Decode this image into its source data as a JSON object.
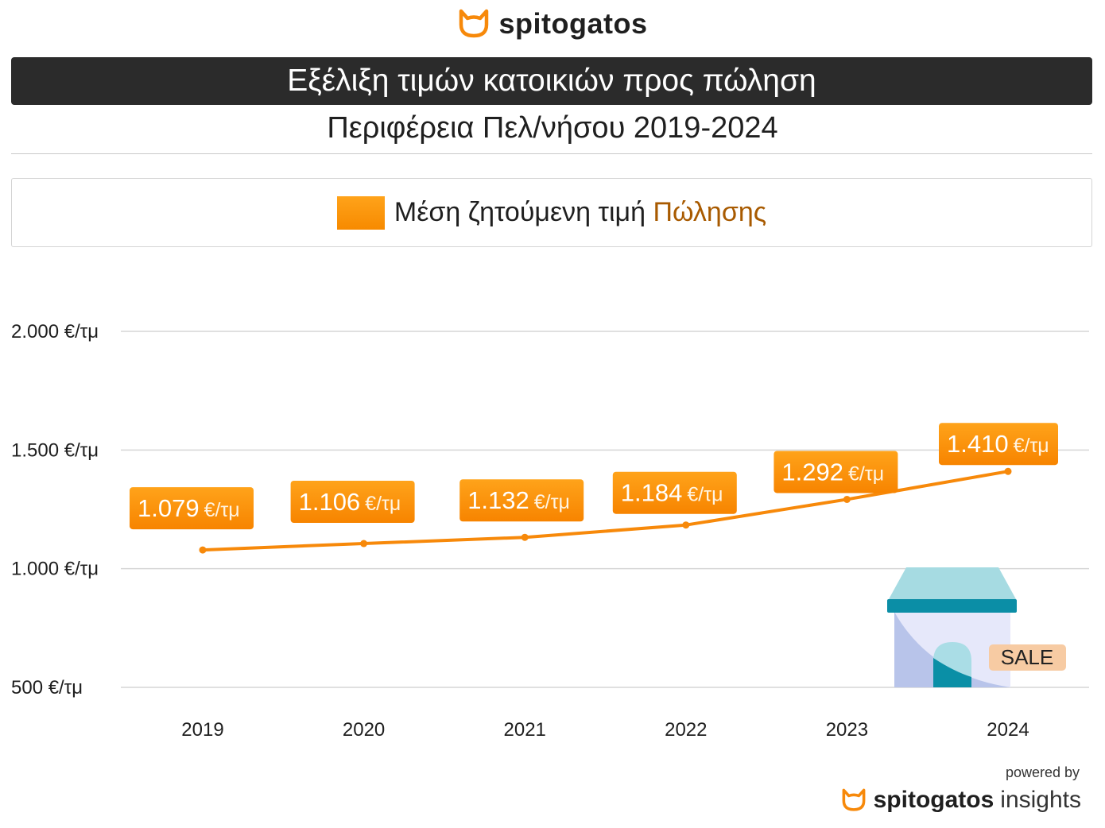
{
  "header": {
    "brand": "spitogatos",
    "title": "Εξέλιξη τιμών κατοικιών προς πώληση",
    "subtitle": "Περιφέρεια Πελ/νήσου 2019-2024"
  },
  "legend": {
    "label": "Μέση ζητούμενη τιμή ",
    "accent": "Πώλησης",
    "swatch_color": "#f99a0d",
    "accent_color": "#a85a00"
  },
  "chart_data": {
    "type": "line",
    "title": "Εξέλιξη τιμών κατοικιών προς πώληση",
    "subtitle": "Περιφέρεια Πελ/νήσου 2019-2024",
    "categories": [
      "2019",
      "2020",
      "2021",
      "2022",
      "2023",
      "2024"
    ],
    "series": [
      {
        "name": "Μέση ζητούμενη τιμή Πώλησης",
        "values": [
          1079,
          1106,
          1132,
          1184,
          1292,
          1410
        ],
        "labels": [
          "1.079",
          "1.106",
          "1.132",
          "1.184",
          "1.292",
          "1.410"
        ],
        "unit": "€/τμ",
        "color": "#f7890a"
      }
    ],
    "yticks": [
      500,
      1000,
      1500,
      2000
    ],
    "ytick_labels": [
      "500 €/τμ",
      "1.000 €/τμ",
      "1.500 €/τμ",
      "2.000 €/τμ"
    ],
    "ylim": [
      500,
      2000
    ],
    "grid": true,
    "xlabel": "",
    "ylabel": ""
  },
  "illustration": {
    "sale_label": "SALE"
  },
  "footer": {
    "powered_by": "powered by",
    "brand": "spitogatos",
    "product": "insights"
  }
}
